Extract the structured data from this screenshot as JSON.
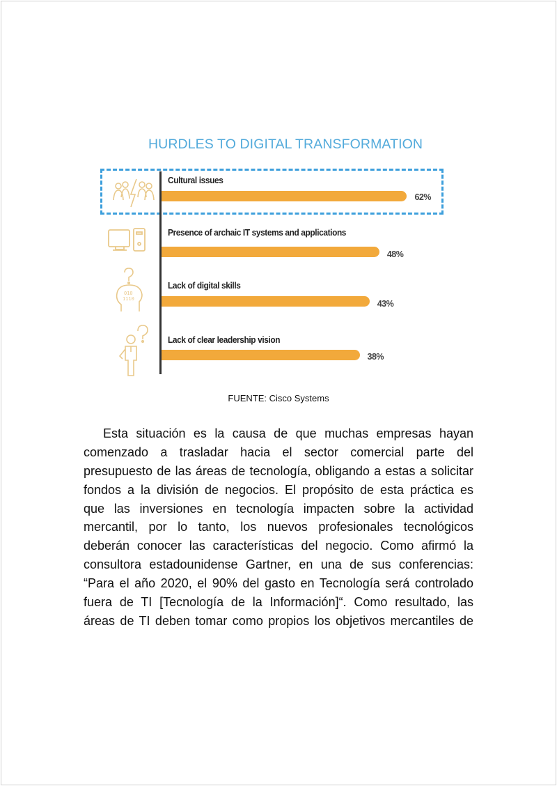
{
  "figure": {
    "title": "HURDLES TO DIGITAL TRANSFORMATION",
    "caption": "FUENTE: Cisco Systems",
    "colors": {
      "bar": "#f2a93b",
      "title": "#52aadb",
      "highlight_box": "#3d9fdc",
      "icons": "#e9c98b"
    },
    "highlighted_item": "Cultural issues"
  },
  "chart_data": {
    "type": "bar",
    "orientation": "horizontal",
    "title": "HURDLES TO DIGITAL TRANSFORMATION",
    "categories": [
      "Cultural issues",
      "Presence of archaic IT systems and applications",
      "Lack of digital skills",
      "Lack of clear leadership vision"
    ],
    "values": [
      62,
      48,
      43,
      38
    ],
    "value_labels": [
      "62%",
      "48%",
      "43%",
      "38%"
    ],
    "icons": [
      "people-conflict-icon",
      "computer-icon",
      "head-question-icon",
      "person-question-icon"
    ],
    "grid": false
  },
  "body": {
    "lines": [
      "Esta situación es la causa de que muchas empresas hayan",
      "comenzado a trasladar hacia el sector comercial parte del",
      "presupuesto de las áreas de tecnología, obligando a estas a solicitar",
      "fondos a la división de negocios. El propósito de esta práctica es",
      "que las inversiones en tecnología impacten sobre la actividad",
      "mercantil, por lo tanto, los nuevos profesionales tecnológicos",
      "deberán conocer las características del negocio. Como afirmó la",
      "consultora estadounidense Gartner, en una de sus conferencias:",
      "“Para el año 2020, el 90% del gasto en Tecnología será controlado",
      "fuera de TI [Tecnología de la Información]“. Como resultado, las",
      "áreas de TI deben tomar como propios los objetivos mercantiles de"
    ]
  }
}
